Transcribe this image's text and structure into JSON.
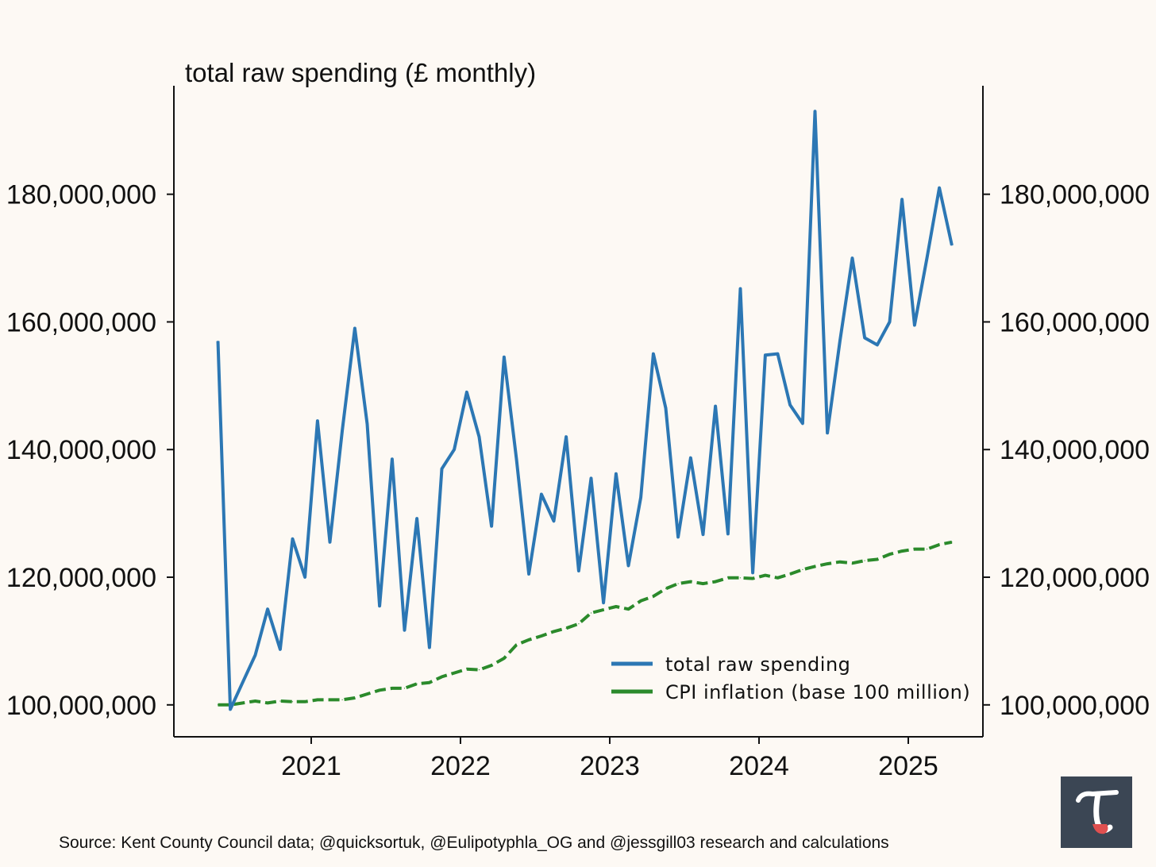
{
  "chart_data": {
    "type": "line",
    "title": "total raw spending (£ monthly)",
    "xlabel": "",
    "ylabel": "",
    "ylim": [
      95000000,
      197000000
    ],
    "xlim": [
      2020.08,
      2025.5
    ],
    "yticks": [
      100000000,
      120000000,
      140000000,
      160000000,
      180000000
    ],
    "ytick_labels": [
      "100,000,000",
      "120,000,000",
      "140,000,000",
      "160,000,000",
      "180,000,000"
    ],
    "xticks": [
      2021,
      2022,
      2023,
      2024,
      2025
    ],
    "xtick_labels": [
      "2021",
      "2022",
      "2023",
      "2024",
      "2025"
    ],
    "legend_position": "lower-right",
    "series": [
      {
        "name": "total raw spending",
        "color": "#2c77b4",
        "style": "solid",
        "x": [
          2020.375,
          2020.458,
          2020.542,
          2020.625,
          2020.708,
          2020.792,
          2020.875,
          2020.958,
          2021.042,
          2021.125,
          2021.208,
          2021.292,
          2021.375,
          2021.458,
          2021.542,
          2021.625,
          2021.708,
          2021.792,
          2021.875,
          2021.958,
          2022.042,
          2022.125,
          2022.208,
          2022.292,
          2022.375,
          2022.458,
          2022.542,
          2022.625,
          2022.708,
          2022.792,
          2022.875,
          2022.958,
          2023.042,
          2023.125,
          2023.208,
          2023.292,
          2023.375,
          2023.458,
          2023.542,
          2023.625,
          2023.708,
          2023.792,
          2023.875,
          2023.958,
          2024.042,
          2024.125,
          2024.208,
          2024.292,
          2024.375,
          2024.458,
          2024.542,
          2024.625,
          2024.708,
          2024.792,
          2024.875,
          2024.958,
          2025.042,
          2025.125,
          2025.208,
          2025.292
        ],
        "values": [
          157000000,
          99300000,
          103600000,
          107800000,
          115000000,
          108700000,
          126000000,
          120000000,
          144500000,
          125500000,
          143000000,
          159000000,
          144000000,
          115500000,
          138500000,
          111700000,
          129200000,
          109000000,
          137000000,
          140000000,
          149000000,
          142000000,
          128000000,
          154500000,
          138500000,
          120500000,
          133000000,
          128800000,
          142000000,
          121000000,
          135500000,
          116000000,
          136200000,
          121800000,
          132500000,
          155000000,
          146500000,
          126300000,
          138700000,
          126700000,
          146800000,
          126800000,
          165200000,
          120700000,
          154800000,
          155000000,
          147000000,
          144100000,
          193000000,
          142600000,
          157000000,
          170000000,
          157500000,
          156400000,
          160000000,
          179200000,
          159500000,
          170000000,
          181000000,
          172000000
        ]
      },
      {
        "name": "CPI inflation (base 100 million)",
        "color": "#2b8a2b",
        "style": "dashed",
        "x": [
          2020.375,
          2020.458,
          2020.542,
          2020.625,
          2020.708,
          2020.792,
          2020.875,
          2020.958,
          2021.042,
          2021.125,
          2021.208,
          2021.292,
          2021.375,
          2021.458,
          2021.542,
          2021.625,
          2021.708,
          2021.792,
          2021.875,
          2021.958,
          2022.042,
          2022.125,
          2022.208,
          2022.292,
          2022.375,
          2022.458,
          2022.542,
          2022.625,
          2022.708,
          2022.792,
          2022.875,
          2022.958,
          2023.042,
          2023.125,
          2023.208,
          2023.292,
          2023.375,
          2023.458,
          2023.542,
          2023.625,
          2023.708,
          2023.792,
          2023.875,
          2023.958,
          2024.042,
          2024.125,
          2024.208,
          2024.292,
          2024.375,
          2024.458,
          2024.542,
          2024.625,
          2024.708,
          2024.792,
          2024.875,
          2024.958,
          2025.042,
          2025.125,
          2025.208,
          2025.292
        ],
        "values": [
          100000000,
          100000000,
          100300000,
          100600000,
          100300000,
          100600000,
          100500000,
          100500000,
          100800000,
          100800000,
          100800000,
          101100000,
          101700000,
          102300000,
          102600000,
          102600000,
          103300000,
          103500000,
          104400000,
          105000000,
          105600000,
          105500000,
          106200000,
          107300000,
          109400000,
          110200000,
          110800000,
          111500000,
          112000000,
          112700000,
          114400000,
          114900000,
          115400000,
          115000000,
          116300000,
          117000000,
          118200000,
          119000000,
          119300000,
          119000000,
          119300000,
          119900000,
          119900000,
          119800000,
          120300000,
          119900000,
          120500000,
          121200000,
          121700000,
          122100000,
          122400000,
          122200000,
          122600000,
          122800000,
          123600000,
          124100000,
          124400000,
          124400000,
          125100000,
          125500000
        ]
      }
    ],
    "source": "Source: Kent County Council data; @quicksortuk, @Eulipotyphla_OG and @jessgill03 research and calculations"
  },
  "logo": {
    "name": "tau-logo",
    "bg": "#3b4654",
    "accent": "#e05050"
  }
}
